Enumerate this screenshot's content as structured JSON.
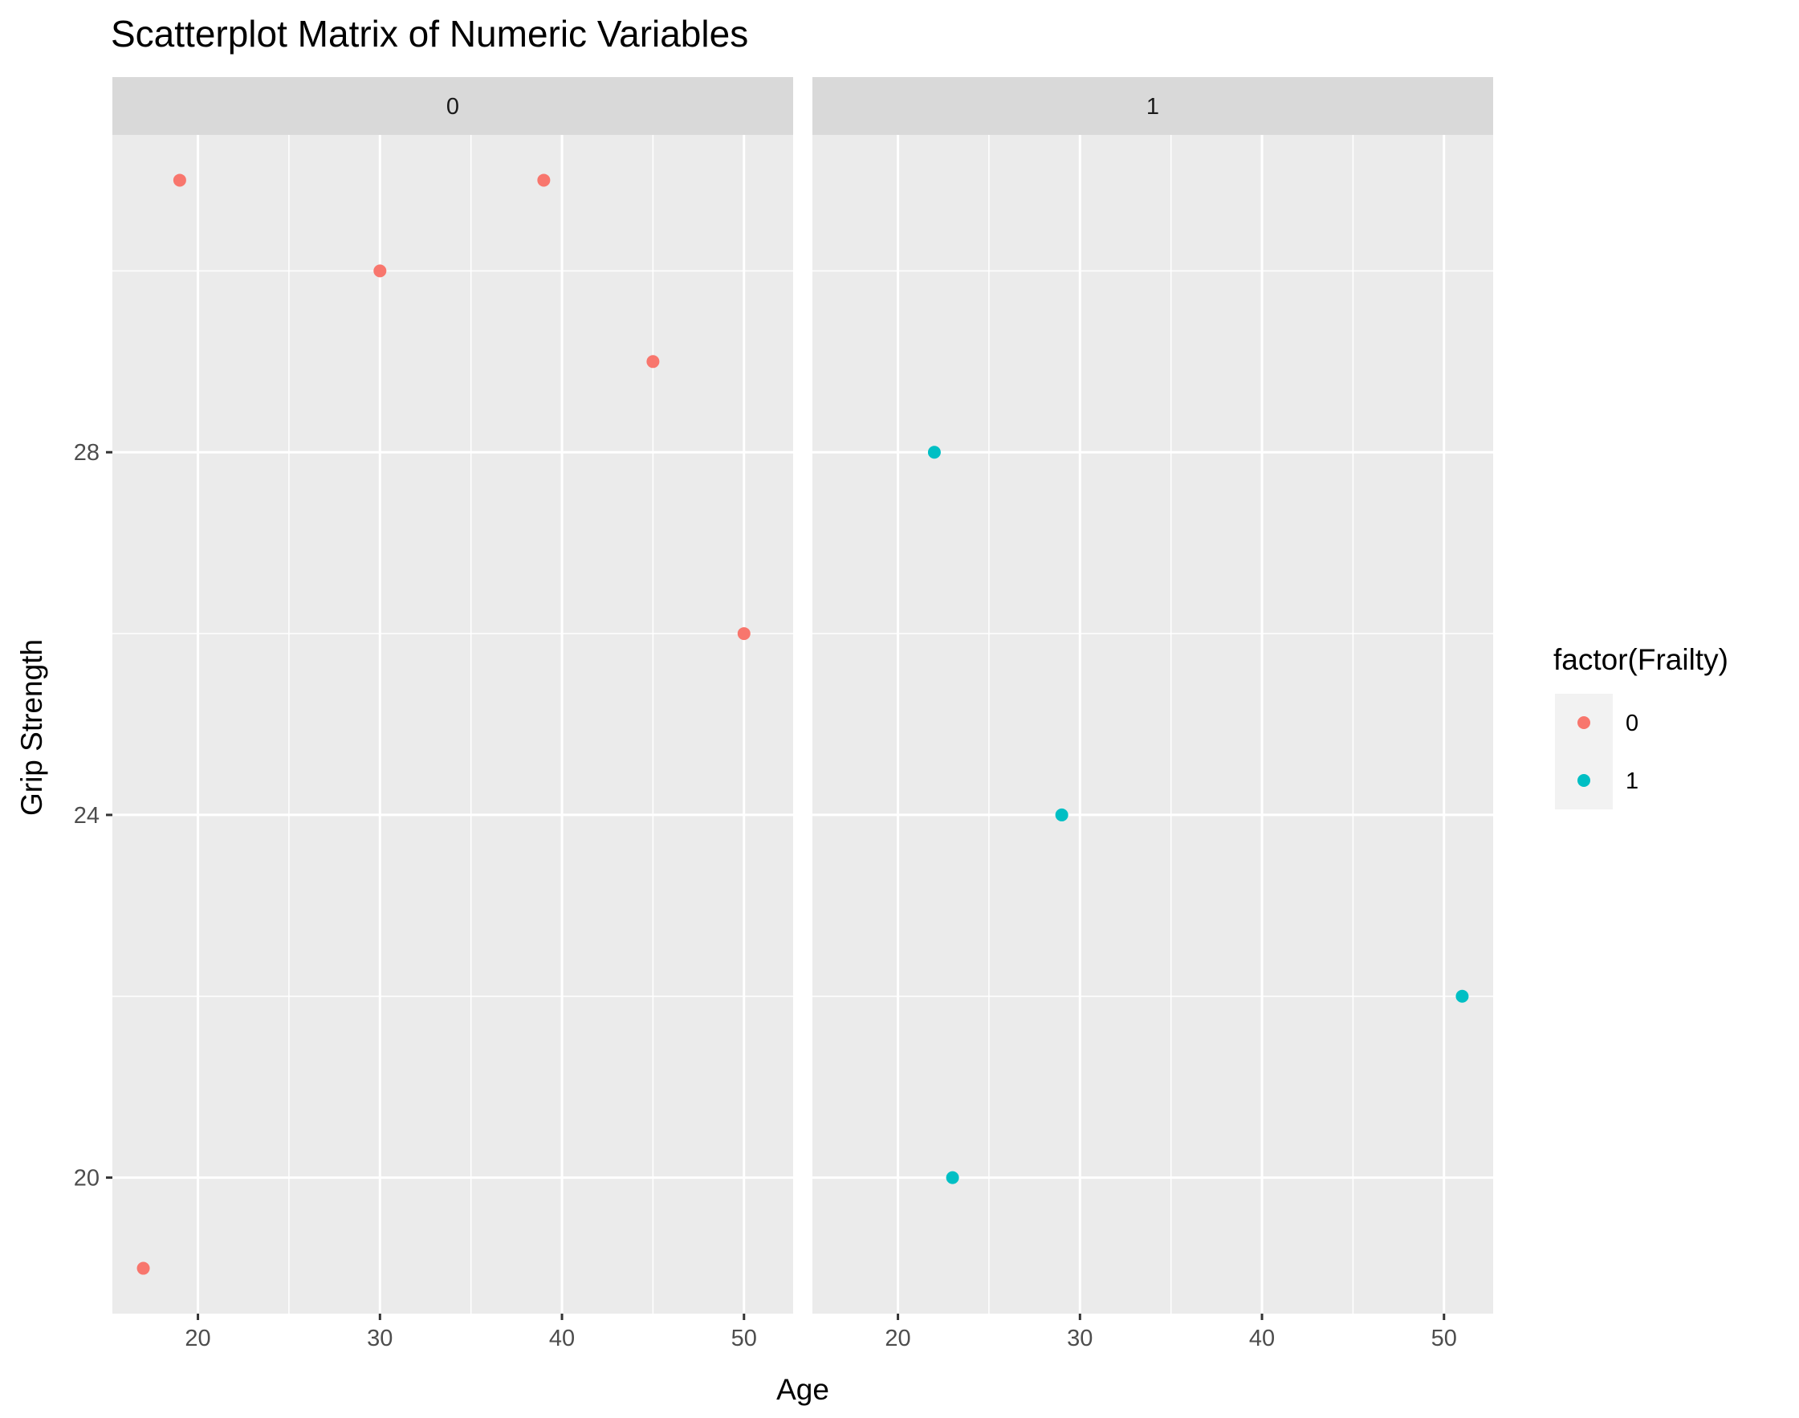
{
  "chart_data": {
    "type": "scatter",
    "title": "Scatterplot Matrix of Numeric Variables",
    "xlabel": "Age",
    "ylabel": "Grip Strength",
    "xlim": [
      15.3,
      52.7
    ],
    "ylim": [
      18.5,
      31.5
    ],
    "x_ticks": [
      20,
      30,
      40,
      50
    ],
    "y_ticks": [
      20,
      24,
      28
    ],
    "grid": true,
    "facet_variable": "Frailty",
    "legend": {
      "title": "factor(Frailty)",
      "position": "right",
      "entries": [
        {
          "label": "0",
          "color": "#F8766D"
        },
        {
          "label": "1",
          "color": "#00BFC4"
        }
      ]
    },
    "panels": [
      {
        "strip": "0",
        "series": "0",
        "color": "#F8766D",
        "points": [
          {
            "x": 17,
            "y": 19
          },
          {
            "x": 19,
            "y": 31
          },
          {
            "x": 30,
            "y": 30
          },
          {
            "x": 39,
            "y": 31
          },
          {
            "x": 45,
            "y": 29
          },
          {
            "x": 50,
            "y": 26
          }
        ]
      },
      {
        "strip": "1",
        "series": "1",
        "color": "#00BFC4",
        "points": [
          {
            "x": 22,
            "y": 28
          },
          {
            "x": 23,
            "y": 20
          },
          {
            "x": 29,
            "y": 24
          },
          {
            "x": 51,
            "y": 22
          }
        ]
      }
    ]
  },
  "colors": {
    "panel_background": "#EBEBEB",
    "strip_background": "#D9D9D9",
    "grid": "#FFFFFF"
  }
}
